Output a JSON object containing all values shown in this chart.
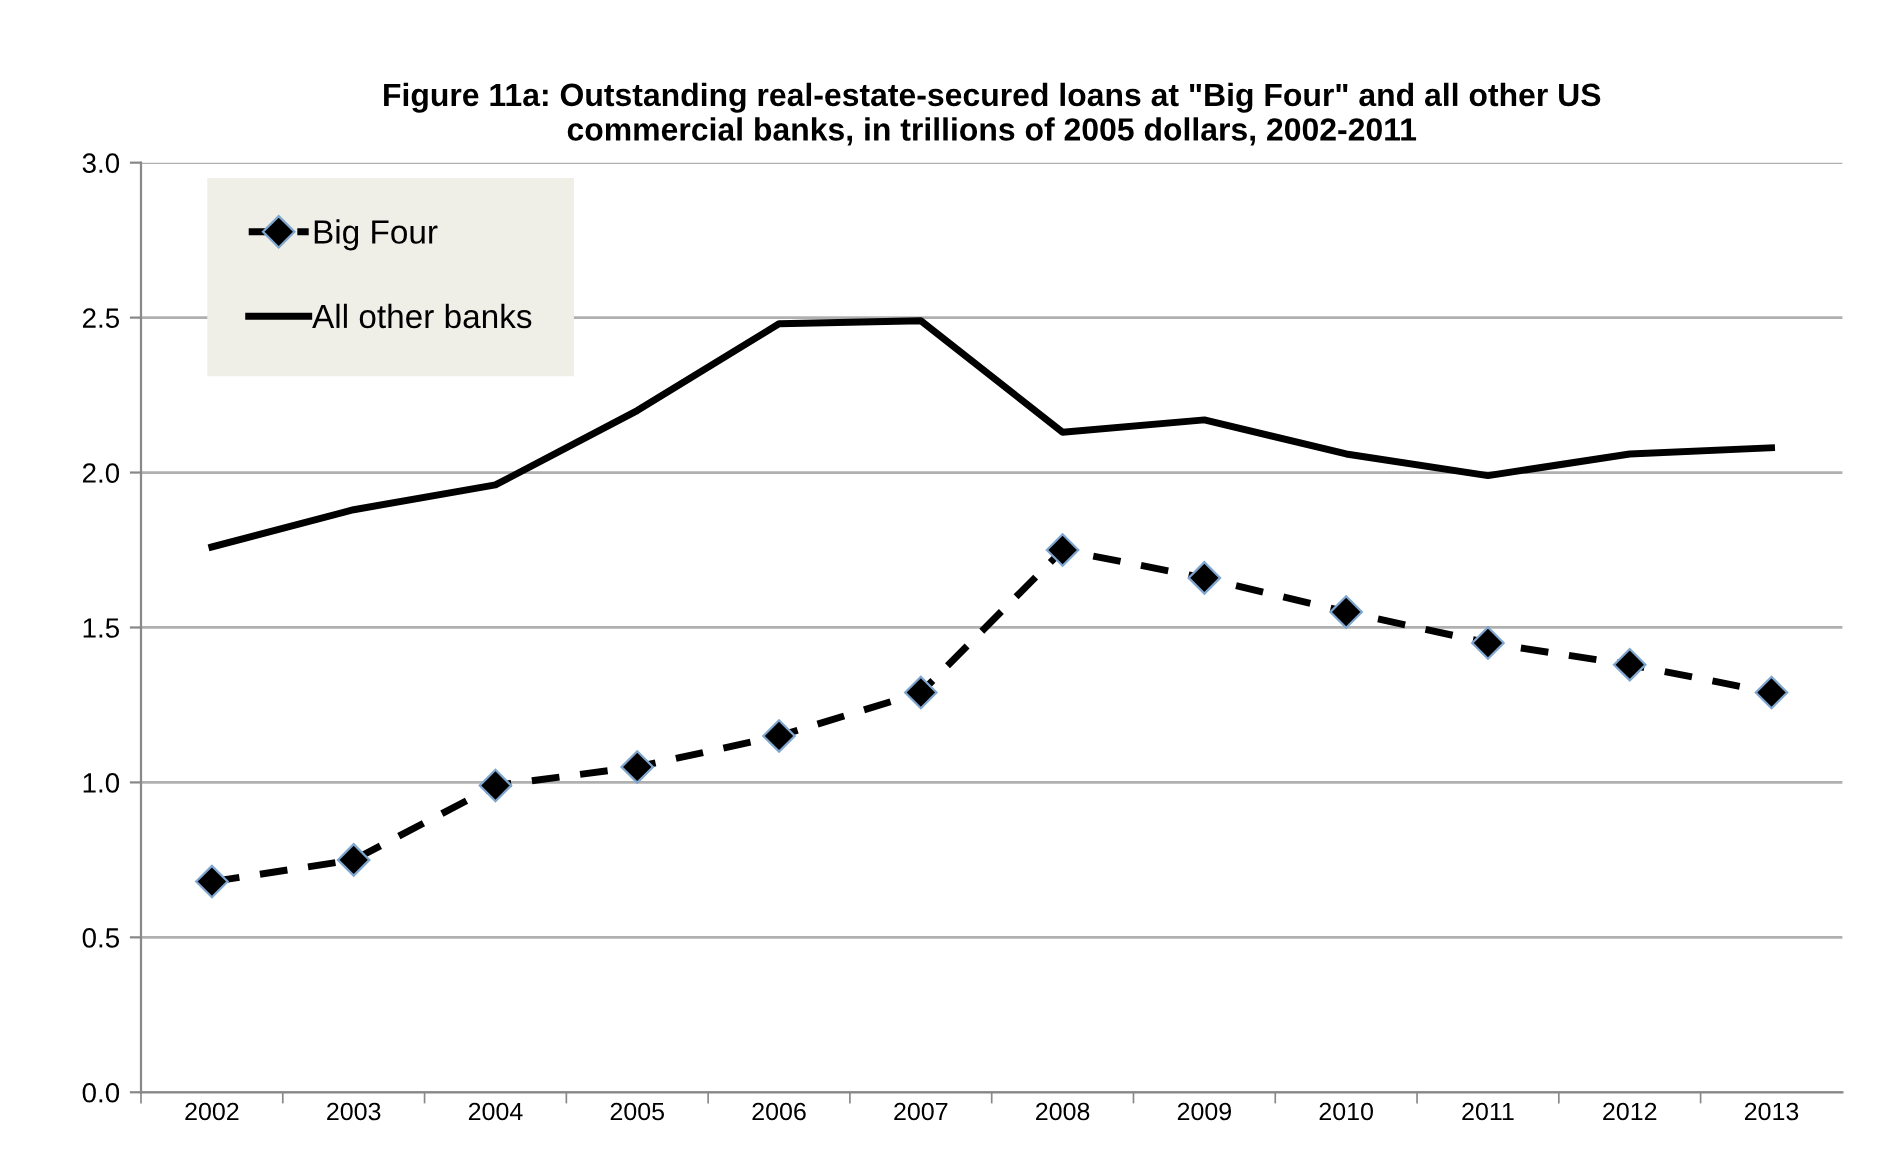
{
  "chart_data": {
    "type": "line",
    "title": "Figure 11a: Outstanding real-estate-secured loans at \"Big Four\" and all other US\ncommercial banks, in trillions of 2005 dollars, 2002-2011",
    "categories": [
      "2002",
      "2003",
      "2004",
      "2005",
      "2006",
      "2007",
      "2008",
      "2009",
      "2010",
      "2011",
      "2012",
      "2013"
    ],
    "series": [
      {
        "name": "Big Four",
        "color": "#000000",
        "marker": "diamond",
        "line_style": "dashed",
        "values": [
          0.68,
          0.75,
          0.99,
          1.05,
          1.15,
          1.29,
          1.75,
          1.66,
          1.55,
          1.45,
          1.38,
          1.29
        ]
      },
      {
        "name": "All other banks",
        "color": "#000000",
        "line_style": "solid",
        "values": [
          1.76,
          1.88,
          1.96,
          2.2,
          2.48,
          2.49,
          2.13,
          2.17,
          2.06,
          1.99,
          2.06,
          2.08
        ]
      }
    ],
    "ylim": [
      0,
      3
    ],
    "yticks": [
      {
        "value": 0,
        "label": "0.0"
      },
      {
        "value": 0.5,
        "label": "0.5"
      },
      {
        "value": 1,
        "label": "1.0"
      },
      {
        "value": 1.5,
        "label": "1.5"
      },
      {
        "value": 2,
        "label": "2.0"
      },
      {
        "value": 2.5,
        "label": "2.5"
      },
      {
        "value": 3,
        "label": "3.0"
      }
    ],
    "grid": "y",
    "legend": "top left"
  }
}
